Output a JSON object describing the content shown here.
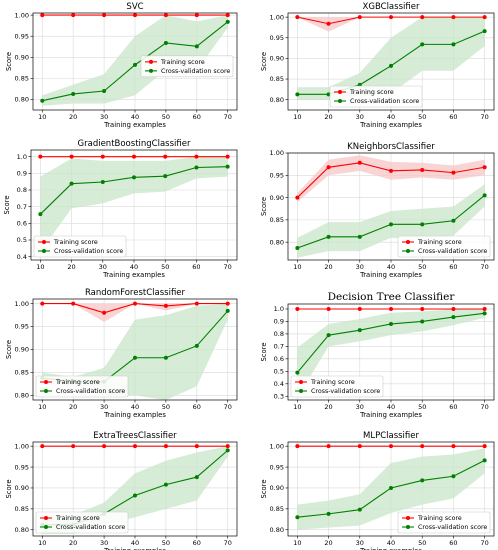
{
  "chart_data": [
    {
      "type": "line",
      "title": "SVC",
      "xlabel": "Training examples",
      "ylabel": "Score",
      "ylim": [
        0.775,
        1.005
      ],
      "yticks": [
        "0.80",
        "0.85",
        "0.90",
        "0.95",
        "1.00"
      ],
      "xticks": [
        "10",
        "20",
        "30",
        "40",
        "50",
        "60",
        "70"
      ],
      "x": [
        10,
        20,
        30,
        40,
        50,
        60,
        70
      ],
      "legend": "center-right",
      "grid": true,
      "series": [
        {
          "name": "Training score",
          "color": "#ff0000",
          "values": [
            1.0,
            1.0,
            1.0,
            1.0,
            1.0,
            1.0,
            1.0
          ],
          "lower": [
            1.0,
            1.0,
            1.0,
            1.0,
            1.0,
            1.0,
            1.0
          ],
          "upper": [
            1.0,
            1.0,
            1.0,
            1.0,
            1.0,
            1.0,
            1.0
          ]
        },
        {
          "name": "Cross-validation score",
          "color": "#008000",
          "values": [
            0.797,
            0.813,
            0.82,
            0.882,
            0.934,
            0.926,
            0.984
          ],
          "lower": [
            0.785,
            0.79,
            0.79,
            0.81,
            0.87,
            0.87,
            0.97
          ],
          "upper": [
            0.81,
            0.835,
            0.86,
            0.95,
            1.0,
            0.985,
            1.0
          ]
        }
      ]
    },
    {
      "type": "line",
      "title": "XGBClassifier",
      "xlabel": "Training examples",
      "ylabel": "Score",
      "ylim": [
        0.775,
        1.01
      ],
      "yticks": [
        "0.80",
        "0.85",
        "0.90",
        "0.95",
        "1.00"
      ],
      "xticks": [
        "10",
        "20",
        "30",
        "40",
        "50",
        "60",
        "70"
      ],
      "x": [
        10,
        20,
        30,
        40,
        50,
        60,
        70
      ],
      "legend": "lower-center",
      "grid": true,
      "series": [
        {
          "name": "Training score",
          "color": "#ff0000",
          "values": [
            1.0,
            0.984,
            1.0,
            1.0,
            1.0,
            1.0,
            1.0
          ],
          "lower": [
            1.0,
            0.965,
            1.0,
            1.0,
            1.0,
            1.0,
            1.0
          ],
          "upper": [
            1.0,
            1.0,
            1.0,
            1.0,
            1.0,
            1.0,
            1.0
          ]
        },
        {
          "name": "Cross-validation score",
          "color": "#008000",
          "values": [
            0.813,
            0.813,
            0.836,
            0.882,
            0.934,
            0.934,
            0.966
          ],
          "lower": [
            0.8,
            0.8,
            0.81,
            0.815,
            0.87,
            0.87,
            0.93
          ],
          "upper": [
            0.83,
            0.83,
            0.865,
            0.95,
            1.0,
            1.0,
            1.0
          ]
        }
      ]
    },
    {
      "type": "line",
      "title": "GradientBoostingClassifier",
      "xlabel": "Training examples",
      "ylabel": "Score",
      "ylim": [
        0.38,
        1.04
      ],
      "yticks": [
        "0.4",
        "0.5",
        "0.6",
        "0.7",
        "0.8",
        "0.9",
        "1.0"
      ],
      "xticks": [
        "10",
        "20",
        "30",
        "40",
        "50",
        "60",
        "70"
      ],
      "x": [
        10,
        20,
        30,
        40,
        50,
        60,
        70
      ],
      "legend": "lower-left",
      "grid": true,
      "series": [
        {
          "name": "Training score",
          "color": "#ff0000",
          "values": [
            1.0,
            1.0,
            1.0,
            1.0,
            1.0,
            1.0,
            1.0
          ],
          "lower": [
            1.0,
            1.0,
            1.0,
            1.0,
            1.0,
            1.0,
            1.0
          ],
          "upper": [
            1.0,
            1.0,
            1.0,
            1.0,
            1.0,
            1.0,
            1.0
          ]
        },
        {
          "name": "Cross-validation score",
          "color": "#008000",
          "values": [
            0.655,
            0.838,
            0.848,
            0.876,
            0.883,
            0.935,
            0.94
          ],
          "lower": [
            0.43,
            0.69,
            0.72,
            0.78,
            0.79,
            0.87,
            0.88
          ],
          "upper": [
            0.88,
            0.99,
            0.975,
            0.975,
            0.975,
            1.0,
            1.0
          ]
        }
      ]
    },
    {
      "type": "line",
      "title": "KNeighborsClassifier",
      "xlabel": "Training examples",
      "ylabel": "Score",
      "ylim": [
        0.76,
        1.0
      ],
      "yticks": [
        "0.80",
        "0.85",
        "0.90",
        "0.95",
        "1.00"
      ],
      "xticks": [
        "10",
        "20",
        "30",
        "40",
        "50",
        "60",
        "70"
      ],
      "x": [
        10,
        20,
        30,
        40,
        50,
        60,
        70
      ],
      "legend": "lower-right",
      "grid": true,
      "series": [
        {
          "name": "Training score",
          "color": "#ff0000",
          "values": [
            0.9,
            0.968,
            0.978,
            0.96,
            0.962,
            0.956,
            0.968
          ],
          "lower": [
            0.89,
            0.95,
            0.96,
            0.94,
            0.945,
            0.94,
            0.95
          ],
          "upper": [
            0.91,
            0.985,
            0.995,
            0.98,
            0.978,
            0.972,
            0.985
          ]
        },
        {
          "name": "Cross-validation score",
          "color": "#008000",
          "values": [
            0.787,
            0.812,
            0.812,
            0.84,
            0.84,
            0.848,
            0.905
          ],
          "lower": [
            0.765,
            0.78,
            0.78,
            0.81,
            0.805,
            0.815,
            0.88
          ],
          "upper": [
            0.81,
            0.845,
            0.845,
            0.87,
            0.875,
            0.88,
            0.93
          ]
        }
      ]
    },
    {
      "type": "line",
      "title": "RandomForestClassifier",
      "xlabel": "Training examples",
      "ylabel": "Score",
      "ylim": [
        0.79,
        1.01
      ],
      "yticks": [
        "0.80",
        "0.85",
        "0.90",
        "0.95",
        "1.00"
      ],
      "xticks": [
        "10",
        "20",
        "30",
        "40",
        "50",
        "60",
        "70"
      ],
      "x": [
        10,
        20,
        30,
        40,
        50,
        60,
        70
      ],
      "legend": "lower-left",
      "grid": true,
      "series": [
        {
          "name": "Training score",
          "color": "#ff0000",
          "values": [
            1.0,
            1.0,
            0.98,
            1.0,
            0.995,
            1.0,
            1.0
          ],
          "lower": [
            1.0,
            1.0,
            0.96,
            1.0,
            0.985,
            1.0,
            1.0
          ],
          "upper": [
            1.0,
            1.0,
            1.0,
            1.0,
            1.0,
            1.0,
            1.0
          ]
        },
        {
          "name": "Cross-validation score",
          "color": "#008000",
          "values": [
            0.838,
            0.83,
            0.83,
            0.882,
            0.882,
            0.908,
            0.984
          ],
          "lower": [
            0.825,
            0.82,
            0.8,
            0.8,
            0.79,
            0.82,
            0.965
          ],
          "upper": [
            0.85,
            0.84,
            0.86,
            0.965,
            0.975,
            0.995,
            1.0
          ]
        }
      ]
    },
    {
      "type": "line",
      "title": "Decision Tree Classifier",
      "xlabel": "Training examples",
      "ylabel": "Score",
      "ylim": [
        0.27,
        1.04
      ],
      "yticks": [
        "0.3",
        "0.4",
        "0.5",
        "0.6",
        "0.7",
        "0.8",
        "0.9",
        "1.0"
      ],
      "xticks": [
        "10",
        "20",
        "30",
        "40",
        "50",
        "60",
        "70"
      ],
      "x": [
        10,
        20,
        30,
        40,
        50,
        60,
        70
      ],
      "legend": "lower-left",
      "grid": true,
      "series": [
        {
          "name": "Training score",
          "color": "#ff0000",
          "values": [
            1.0,
            1.0,
            1.0,
            1.0,
            1.0,
            1.0,
            1.0
          ],
          "lower": [
            1.0,
            1.0,
            1.0,
            1.0,
            1.0,
            1.0,
            1.0
          ],
          "upper": [
            1.0,
            1.0,
            1.0,
            1.0,
            1.0,
            1.0,
            1.0
          ]
        },
        {
          "name": "Cross-validation score",
          "color": "#008000",
          "values": [
            0.49,
            0.79,
            0.83,
            0.88,
            0.9,
            0.935,
            0.965
          ],
          "lower": [
            0.29,
            0.7,
            0.74,
            0.79,
            0.82,
            0.87,
            0.93
          ],
          "upper": [
            0.69,
            0.88,
            0.92,
            0.97,
            0.98,
            1.0,
            1.0
          ]
        }
      ]
    },
    {
      "type": "line",
      "title": "ExtraTreesClassifier",
      "xlabel": "Training examples",
      "ylabel": "Score",
      "ylim": [
        0.785,
        1.01
      ],
      "yticks": [
        "0.80",
        "0.85",
        "0.90",
        "0.95",
        "1.00"
      ],
      "xticks": [
        "10",
        "20",
        "30",
        "40",
        "50",
        "60",
        "70"
      ],
      "x": [
        10,
        20,
        30,
        40,
        50,
        60,
        70
      ],
      "legend": "lower-left",
      "grid": true,
      "series": [
        {
          "name": "Training score",
          "color": "#ff0000",
          "values": [
            1.0,
            1.0,
            1.0,
            1.0,
            1.0,
            1.0,
            1.0
          ],
          "lower": [
            1.0,
            1.0,
            1.0,
            1.0,
            1.0,
            1.0,
            1.0
          ],
          "upper": [
            1.0,
            1.0,
            1.0,
            1.0,
            1.0,
            1.0,
            1.0
          ]
        },
        {
          "name": "Cross-validation score",
          "color": "#008000",
          "values": [
            0.812,
            0.812,
            0.838,
            0.882,
            0.908,
            0.926,
            0.99
          ],
          "lower": [
            0.79,
            0.79,
            0.81,
            0.83,
            0.85,
            0.87,
            0.975
          ],
          "upper": [
            0.835,
            0.835,
            0.865,
            0.935,
            0.965,
            0.985,
            1.0
          ]
        }
      ]
    },
    {
      "type": "line",
      "title": "MLPClassifier",
      "xlabel": "Training examples",
      "ylabel": "Score",
      "ylim": [
        0.785,
        1.01
      ],
      "yticks": [
        "0.80",
        "0.85",
        "0.90",
        "0.95",
        "1.00"
      ],
      "xticks": [
        "10",
        "20",
        "30",
        "40",
        "50",
        "60",
        "70"
      ],
      "x": [
        10,
        20,
        30,
        40,
        50,
        60,
        70
      ],
      "legend": "lower-right",
      "grid": true,
      "series": [
        {
          "name": "Training score",
          "color": "#ff0000",
          "values": [
            1.0,
            1.0,
            1.0,
            1.0,
            1.0,
            1.0,
            1.0
          ],
          "lower": [
            1.0,
            1.0,
            1.0,
            1.0,
            1.0,
            1.0,
            1.0
          ],
          "upper": [
            1.0,
            1.0,
            1.0,
            1.0,
            1.0,
            1.0,
            1.0
          ]
        },
        {
          "name": "Cross-validation score",
          "color": "#008000",
          "values": [
            0.83,
            0.838,
            0.848,
            0.9,
            0.918,
            0.928,
            0.966
          ],
          "lower": [
            0.8,
            0.805,
            0.81,
            0.84,
            0.86,
            0.875,
            0.935
          ],
          "upper": [
            0.86,
            0.87,
            0.885,
            0.96,
            0.975,
            0.98,
            0.995
          ]
        }
      ]
    }
  ]
}
